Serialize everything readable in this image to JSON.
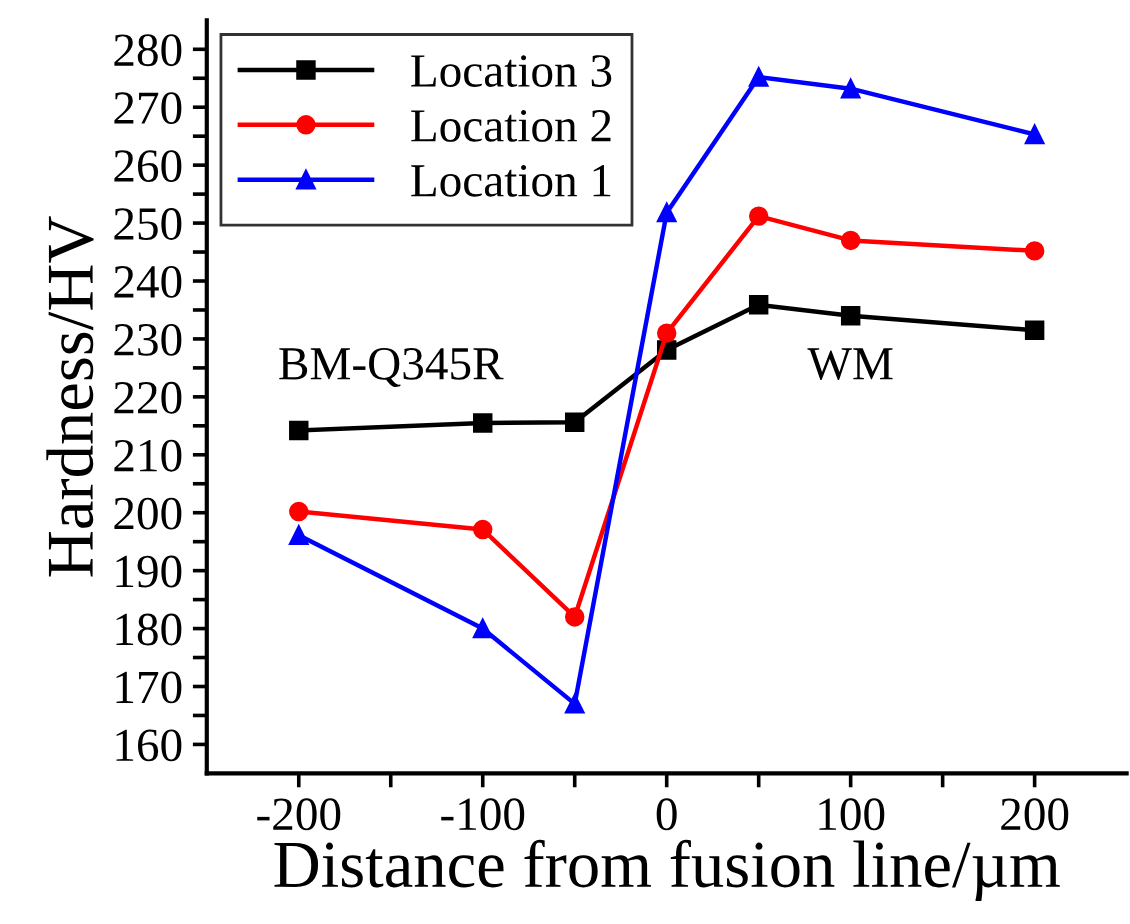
{
  "chart_data": {
    "type": "line",
    "xlabel": "Distance from fusion line/µm",
    "ylabel": "Hardness/HV",
    "x": [
      -200,
      -100,
      -50,
      0,
      50,
      100,
      200
    ],
    "series": [
      {
        "name": "Location 3",
        "color": "#000000",
        "marker": "square",
        "values": [
          214.2,
          215.5,
          215.6,
          228.1,
          235.9,
          234,
          231.5
        ]
      },
      {
        "name": "Location 2",
        "color": "#ff0000",
        "marker": "circle",
        "values": [
          200.2,
          197.1,
          182,
          231,
          251.2,
          247,
          245.2
        ]
      },
      {
        "name": "Location 1",
        "color": "#0000ff",
        "marker": "triangle",
        "values": [
          196.1,
          180,
          167,
          251.8,
          275.2,
          273.2,
          265.3
        ]
      }
    ],
    "xlim": [
      -250,
      250
    ],
    "xticks": [
      -200,
      {
        "value": -150,
        "label": null
      },
      -100,
      {
        "value": -50,
        "label": null
      },
      0,
      {
        "value": 50,
        "label": null
      },
      100,
      {
        "value": 150,
        "label": null
      },
      200
    ],
    "ylim": [
      155,
      285
    ],
    "yticks": [
      160,
      {
        "value": 165,
        "label": null
      },
      170,
      {
        "value": 175,
        "label": null
      },
      180,
      {
        "value": 185,
        "label": null
      },
      190,
      {
        "value": 195,
        "label": null
      },
      200,
      {
        "value": 205,
        "label": null
      },
      210,
      {
        "value": 215,
        "label": null
      },
      220,
      {
        "value": 225,
        "label": null
      },
      230,
      {
        "value": 235,
        "label": null
      },
      240,
      {
        "value": 245,
        "label": null
      },
      250,
      {
        "value": 255,
        "label": null
      },
      260,
      {
        "value": 265,
        "label": null
      },
      270,
      {
        "value": 275,
        "label": null
      },
      280
    ],
    "annotations": [
      "BM-Q345R",
      "WM"
    ],
    "legend": "top left",
    "grid": false,
    "line_style": "solid"
  }
}
